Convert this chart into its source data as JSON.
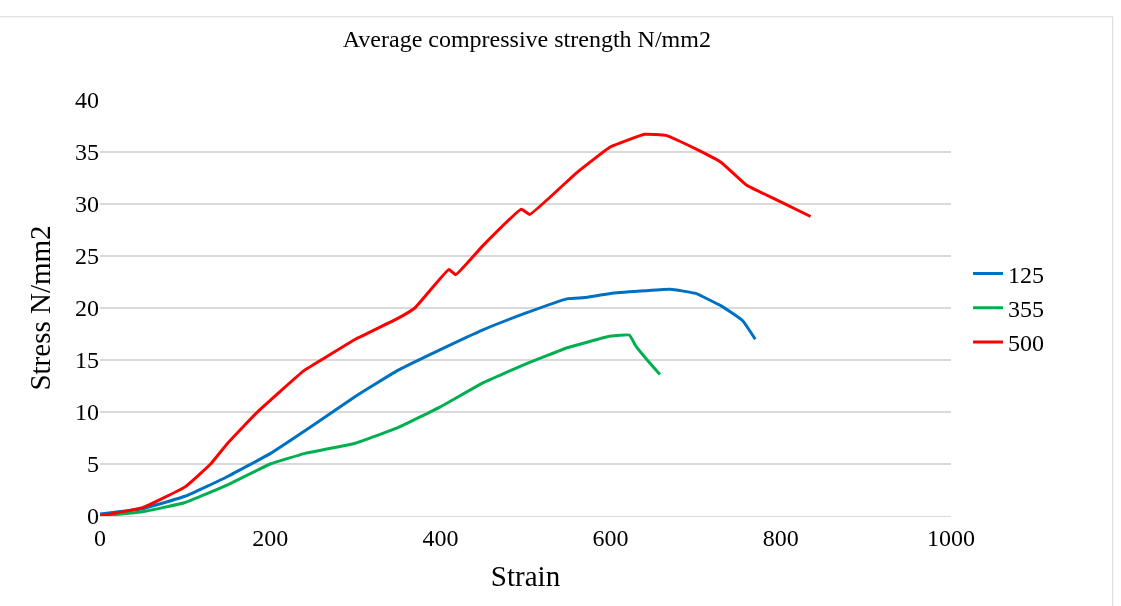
{
  "chart_data": {
    "type": "line",
    "title": "Average compressive strength N/mm2",
    "xlabel": "Strain",
    "ylabel": "Stress N/mm2",
    "xlim": [
      0,
      1000
    ],
    "xticks": [
      0,
      200,
      400,
      600,
      800,
      1000
    ],
    "ylim": [
      0,
      40
    ],
    "yticks": [
      0,
      5,
      10,
      15,
      20,
      25,
      30,
      35,
      40
    ],
    "grid": "y",
    "legend": "right",
    "marker": "none",
    "line_style": "solid",
    "series": [
      {
        "name": "125",
        "color": "#0070c0",
        "x": [
          0,
          50,
          100,
          150,
          200,
          250,
          300,
          350,
          400,
          450,
          500,
          550,
          570,
          600,
          670,
          700,
          730,
          755,
          770
        ],
        "values": [
          0.2,
          0.7,
          1.9,
          3.8,
          6,
          8.7,
          11.5,
          14,
          16,
          17.9,
          19.5,
          20.9,
          21,
          21.4,
          21.8,
          21.4,
          20.2,
          18.8,
          17
        ]
      },
      {
        "name": "355",
        "color": "#00b050",
        "x": [
          0,
          50,
          100,
          150,
          200,
          240,
          300,
          350,
          400,
          450,
          500,
          550,
          600,
          622,
          630,
          645,
          658
        ],
        "values": [
          0,
          0.4,
          1.3,
          3,
          5,
          6,
          7,
          8.5,
          10.5,
          12.8,
          14.6,
          16.2,
          17.3,
          17.4,
          16.3,
          14.8,
          13.6
        ]
      },
      {
        "name": "500",
        "color": "#ff0000",
        "x": [
          0,
          50,
          100,
          130,
          150,
          185,
          240,
          270,
          300,
          350,
          370,
          410,
          418,
          450,
          495,
          505,
          560,
          600,
          640,
          665,
          700,
          730,
          760,
          800,
          835
        ],
        "values": [
          0,
          0.8,
          2.8,
          5,
          7,
          10,
          14,
          15.5,
          17,
          19,
          20,
          23.7,
          23.2,
          26,
          29.5,
          29,
          33,
          35.5,
          36.7,
          36.6,
          35.3,
          34,
          31.8,
          30.2,
          28.8
        ]
      }
    ]
  }
}
